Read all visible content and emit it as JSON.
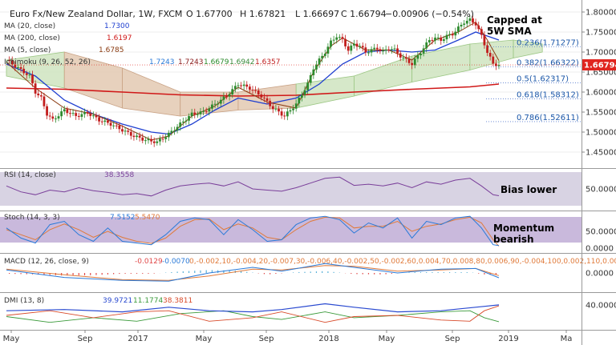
{
  "chart_data": {
    "type": "candlestick",
    "header": {
      "symbol": "Euro Fx/New Zealand Dollar, 1W, FXCM",
      "open": "O 1.67700",
      "high": "H 1.67821",
      "low": "L 1.66697",
      "close": "C 1.66794",
      "change": "−0.00906 (−0.54%)"
    },
    "legends": [
      {
        "label": "MA (20, close)",
        "value": "1.7300",
        "color": "#1f3fd0"
      },
      {
        "label": "MA (200, close)",
        "value": "1.6197",
        "color": "#d01818"
      },
      {
        "label": "MA (5, close)",
        "value": "1.6785",
        "color": "#8a3a10"
      },
      {
        "label": "Ichimoku (9, 26, 52, 26)",
        "values": [
          "1.7243",
          "1.7243",
          "1.6679",
          "1.6942",
          "1.6357"
        ],
        "colors": [
          "#2a7ad8",
          "#8a1a1a",
          "#2a8a2a",
          "#3a8a3a",
          "#c02020"
        ]
      }
    ],
    "price_axis": {
      "ticks": [
        "1.80000",
        "1.75000",
        "1.70000",
        "1.65000",
        "1.60000",
        "1.55000",
        "1.50000",
        "1.45000"
      ],
      "ylim": [
        1.43,
        1.81
      ]
    },
    "last_price": "1.66794",
    "time_labels": [
      "May",
      "Sep",
      "2017",
      "May",
      "Sep",
      "2018",
      "May",
      "Sep",
      "2019",
      "Ma"
    ],
    "fib_levels": [
      {
        "label": "0.236(1.71277)",
        "value": 1.71277
      },
      {
        "label": "0.382(1.66322)",
        "value": 1.66322
      },
      {
        "label": "0.5(1.62317)",
        "value": 1.62317
      },
      {
        "label": "0.618(1.58312)",
        "value": 1.58312
      },
      {
        "label": "0.786(1.52611)",
        "value": 1.52611
      }
    ],
    "annotations": [
      "Capped at",
      "5W SMA",
      "Bias lower",
      "Momentum",
      "bearish"
    ],
    "close_path": [
      [
        0,
        1.68
      ],
      [
        4,
        1.66
      ],
      [
        8,
        1.64
      ],
      [
        10,
        1.6
      ],
      [
        12,
        1.585
      ],
      [
        14,
        1.545
      ],
      [
        16,
        1.53
      ],
      [
        20,
        1.555
      ],
      [
        24,
        1.54
      ],
      [
        28,
        1.548
      ],
      [
        32,
        1.53
      ],
      [
        36,
        1.52
      ],
      [
        40,
        1.505
      ],
      [
        44,
        1.49
      ],
      [
        48,
        1.48
      ],
      [
        52,
        1.475
      ],
      [
        56,
        1.495
      ],
      [
        60,
        1.52
      ],
      [
        64,
        1.545
      ],
      [
        68,
        1.55
      ],
      [
        72,
        1.57
      ],
      [
        76,
        1.59
      ],
      [
        80,
        1.62
      ],
      [
        84,
        1.61
      ],
      [
        88,
        1.59
      ],
      [
        92,
        1.56
      ],
      [
        96,
        1.54
      ],
      [
        100,
        1.57
      ],
      [
        104,
        1.62
      ],
      [
        106,
        1.66
      ],
      [
        108,
        1.68
      ],
      [
        110,
        1.7
      ],
      [
        112,
        1.725
      ],
      [
        114,
        1.74
      ],
      [
        116,
        1.73
      ],
      [
        118,
        1.705
      ],
      [
        120,
        1.72
      ],
      [
        122,
        1.715
      ],
      [
        124,
        1.7
      ],
      [
        126,
        1.705
      ],
      [
        128,
        1.71
      ],
      [
        130,
        1.7
      ],
      [
        132,
        1.71
      ],
      [
        134,
        1.705
      ],
      [
        136,
        1.69
      ],
      [
        138,
        1.68
      ],
      [
        140,
        1.67
      ],
      [
        142,
        1.69
      ],
      [
        144,
        1.71
      ],
      [
        146,
        1.73
      ],
      [
        148,
        1.735
      ],
      [
        150,
        1.73
      ],
      [
        152,
        1.74
      ],
      [
        154,
        1.745
      ],
      [
        156,
        1.76
      ],
      [
        158,
        1.775
      ],
      [
        160,
        1.78
      ],
      [
        162,
        1.77
      ],
      [
        164,
        1.74
      ],
      [
        166,
        1.7
      ],
      [
        168,
        1.67
      ],
      [
        170,
        1.668
      ]
    ],
    "ma20_path": [
      [
        0,
        1.67
      ],
      [
        10,
        1.64
      ],
      [
        20,
        1.58
      ],
      [
        30,
        1.545
      ],
      [
        40,
        1.52
      ],
      [
        50,
        1.5
      ],
      [
        56,
        1.495
      ],
      [
        64,
        1.52
      ],
      [
        72,
        1.555
      ],
      [
        80,
        1.585
      ],
      [
        90,
        1.57
      ],
      [
        100,
        1.585
      ],
      [
        108,
        1.62
      ],
      [
        116,
        1.67
      ],
      [
        124,
        1.7
      ],
      [
        132,
        1.705
      ],
      [
        140,
        1.7
      ],
      [
        148,
        1.705
      ],
      [
        156,
        1.73
      ],
      [
        162,
        1.75
      ],
      [
        170,
        1.73
      ]
    ],
    "ma200_path": [
      [
        0,
        1.61
      ],
      [
        20,
        1.607
      ],
      [
        40,
        1.6
      ],
      [
        60,
        1.593
      ],
      [
        80,
        1.59
      ],
      [
        100,
        1.592
      ],
      [
        120,
        1.6
      ],
      [
        140,
        1.607
      ],
      [
        160,
        1.613
      ],
      [
        170,
        1.62
      ]
    ],
    "ma5_path": [
      [
        0,
        1.675
      ],
      [
        10,
        1.61
      ],
      [
        20,
        1.56
      ],
      [
        30,
        1.545
      ],
      [
        40,
        1.515
      ],
      [
        50,
        1.48
      ],
      [
        56,
        1.49
      ],
      [
        64,
        1.54
      ],
      [
        72,
        1.565
      ],
      [
        80,
        1.612
      ],
      [
        90,
        1.575
      ],
      [
        100,
        1.56
      ],
      [
        106,
        1.65
      ],
      [
        112,
        1.715
      ],
      [
        116,
        1.735
      ],
      [
        124,
        1.705
      ],
      [
        132,
        1.705
      ],
      [
        140,
        1.68
      ],
      [
        148,
        1.73
      ],
      [
        156,
        1.75
      ],
      [
        162,
        1.775
      ],
      [
        166,
        1.73
      ],
      [
        170,
        1.6785
      ]
    ],
    "cloud_top": [
      [
        0,
        1.68
      ],
      [
        20,
        1.7
      ],
      [
        40,
        1.66
      ],
      [
        60,
        1.6
      ],
      [
        80,
        1.6
      ],
      [
        100,
        1.62
      ],
      [
        120,
        1.64
      ],
      [
        140,
        1.69
      ],
      [
        160,
        1.72
      ],
      [
        175,
        1.73
      ],
      [
        185,
        1.72
      ]
    ],
    "cloud_bottom": [
      [
        0,
        1.64
      ],
      [
        20,
        1.61
      ],
      [
        40,
        1.56
      ],
      [
        60,
        1.54
      ],
      [
        80,
        1.555
      ],
      [
        100,
        1.56
      ],
      [
        120,
        1.59
      ],
      [
        140,
        1.625
      ],
      [
        160,
        1.655
      ],
      [
        175,
        1.685
      ],
      [
        185,
        1.7
      ]
    ],
    "rsi": {
      "label": "RSI (14, close)",
      "value": "38.3558",
      "ticks": [
        "50.0000"
      ],
      "ylim": [
        20,
        80
      ],
      "series": [
        [
          0,
          55
        ],
        [
          5,
          45
        ],
        [
          10,
          40
        ],
        [
          15,
          48
        ],
        [
          20,
          45
        ],
        [
          25,
          52
        ],
        [
          30,
          47
        ],
        [
          35,
          44
        ],
        [
          40,
          40
        ],
        [
          45,
          42
        ],
        [
          50,
          38
        ],
        [
          55,
          48
        ],
        [
          60,
          55
        ],
        [
          65,
          58
        ],
        [
          70,
          60
        ],
        [
          75,
          55
        ],
        [
          80,
          62
        ],
        [
          85,
          50
        ],
        [
          90,
          48
        ],
        [
          95,
          46
        ],
        [
          100,
          52
        ],
        [
          105,
          60
        ],
        [
          110,
          68
        ],
        [
          115,
          70
        ],
        [
          120,
          56
        ],
        [
          125,
          58
        ],
        [
          130,
          55
        ],
        [
          135,
          60
        ],
        [
          140,
          52
        ],
        [
          145,
          62
        ],
        [
          150,
          58
        ],
        [
          155,
          65
        ],
        [
          160,
          68
        ],
        [
          164,
          55
        ],
        [
          168,
          40
        ],
        [
          170,
          38.36
        ]
      ]
    },
    "stoch": {
      "label": "Stoch (14, 3, 3)",
      "k": "7.5152",
      "d": "5.5470",
      "ticks": [
        "50.0000",
        "0.0000"
      ],
      "ylim": [
        -5,
        105
      ],
      "k_series": [
        [
          0,
          60
        ],
        [
          5,
          30
        ],
        [
          10,
          15
        ],
        [
          15,
          70
        ],
        [
          20,
          80
        ],
        [
          25,
          40
        ],
        [
          30,
          20
        ],
        [
          35,
          60
        ],
        [
          40,
          20
        ],
        [
          45,
          15
        ],
        [
          50,
          10
        ],
        [
          55,
          40
        ],
        [
          60,
          80
        ],
        [
          65,
          90
        ],
        [
          70,
          85
        ],
        [
          75,
          40
        ],
        [
          80,
          85
        ],
        [
          85,
          55
        ],
        [
          90,
          20
        ],
        [
          95,
          25
        ],
        [
          100,
          70
        ],
        [
          105,
          90
        ],
        [
          110,
          95
        ],
        [
          115,
          85
        ],
        [
          120,
          45
        ],
        [
          125,
          75
        ],
        [
          130,
          60
        ],
        [
          135,
          90
        ],
        [
          140,
          30
        ],
        [
          145,
          80
        ],
        [
          150,
          70
        ],
        [
          155,
          90
        ],
        [
          160,
          95
        ],
        [
          164,
          60
        ],
        [
          168,
          10
        ],
        [
          170,
          7.5
        ]
      ],
      "d_series": [
        [
          0,
          55
        ],
        [
          5,
          40
        ],
        [
          10,
          25
        ],
        [
          15,
          55
        ],
        [
          20,
          72
        ],
        [
          25,
          55
        ],
        [
          30,
          32
        ],
        [
          35,
          50
        ],
        [
          40,
          32
        ],
        [
          45,
          20
        ],
        [
          50,
          14
        ],
        [
          55,
          30
        ],
        [
          60,
          65
        ],
        [
          65,
          85
        ],
        [
          70,
          87
        ],
        [
          75,
          55
        ],
        [
          80,
          72
        ],
        [
          85,
          60
        ],
        [
          90,
          32
        ],
        [
          95,
          25
        ],
        [
          100,
          55
        ],
        [
          105,
          80
        ],
        [
          110,
          92
        ],
        [
          115,
          90
        ],
        [
          120,
          60
        ],
        [
          125,
          65
        ],
        [
          130,
          65
        ],
        [
          135,
          80
        ],
        [
          140,
          50
        ],
        [
          145,
          65
        ],
        [
          150,
          72
        ],
        [
          155,
          85
        ],
        [
          160,
          92
        ],
        [
          164,
          75
        ],
        [
          168,
          25
        ],
        [
          170,
          5.5
        ]
      ]
    },
    "macd": {
      "label": "MACD (12, 26, close, 9)",
      "macd": "-0.0129",
      "signal": "-0.0070",
      "hist": [
        [
          0,
          -0.002
        ],
        [
          10,
          -0.004
        ],
        [
          20,
          -0.007
        ],
        [
          30,
          -0.006
        ],
        [
          40,
          -0.002
        ],
        [
          50,
          -0.002
        ],
        [
          60,
          0.004
        ],
        [
          70,
          0.008
        ],
        [
          80,
          0.006
        ],
        [
          90,
          -0.004
        ],
        [
          100,
          0.002
        ],
        [
          110,
          0.005
        ],
        [
          120,
          -0.003
        ],
        [
          130,
          -0.004
        ],
        [
          140,
          0.002
        ],
        [
          150,
          0.002
        ],
        [
          160,
          0.002
        ],
        [
          165,
          -0.004
        ],
        [
          170,
          -0.0059
        ]
      ],
      "ticks": [
        "0.0000"
      ],
      "ylim": [
        -0.045,
        0.045
      ],
      "macd_series": [
        [
          0,
          0.008
        ],
        [
          20,
          -0.012
        ],
        [
          40,
          -0.02
        ],
        [
          56,
          -0.022
        ],
        [
          70,
          0.0
        ],
        [
          85,
          0.015
        ],
        [
          95,
          0.005
        ],
        [
          110,
          0.025
        ],
        [
          120,
          0.015
        ],
        [
          135,
          0.0
        ],
        [
          150,
          0.01
        ],
        [
          162,
          0.012
        ],
        [
          170,
          -0.0129
        ]
      ],
      "signal_series": [
        [
          0,
          0.01
        ],
        [
          20,
          -0.005
        ],
        [
          40,
          -0.018
        ],
        [
          56,
          -0.02
        ],
        [
          70,
          -0.008
        ],
        [
          85,
          0.01
        ],
        [
          95,
          0.008
        ],
        [
          110,
          0.02
        ],
        [
          120,
          0.018
        ],
        [
          135,
          0.005
        ],
        [
          150,
          0.008
        ],
        [
          162,
          0.012
        ],
        [
          170,
          -0.007
        ]
      ]
    },
    "dmi": {
      "label": "DMI (13, 8)",
      "adx": "39.9721",
      "plus": "11.1774",
      "minus": "38.3811",
      "ticks": [
        "40.0000"
      ],
      "ylim": [
        0,
        55
      ],
      "adx_series": [
        [
          0,
          30
        ],
        [
          20,
          32
        ],
        [
          40,
          28
        ],
        [
          56,
          36
        ],
        [
          70,
          30
        ],
        [
          85,
          28
        ],
        [
          95,
          32
        ],
        [
          110,
          42
        ],
        [
          120,
          36
        ],
        [
          135,
          28
        ],
        [
          150,
          30
        ],
        [
          162,
          36
        ],
        [
          170,
          39.97
        ]
      ],
      "plus_series": [
        [
          0,
          20
        ],
        [
          15,
          10
        ],
        [
          30,
          18
        ],
        [
          45,
          12
        ],
        [
          60,
          25
        ],
        [
          75,
          30
        ],
        [
          85,
          20
        ],
        [
          95,
          15
        ],
        [
          110,
          28
        ],
        [
          120,
          18
        ],
        [
          135,
          22
        ],
        [
          150,
          28
        ],
        [
          160,
          30
        ],
        [
          165,
          18
        ],
        [
          170,
          11.18
        ]
      ],
      "minus_series": [
        [
          0,
          22
        ],
        [
          15,
          30
        ],
        [
          30,
          18
        ],
        [
          45,
          28
        ],
        [
          56,
          30
        ],
        [
          70,
          12
        ],
        [
          85,
          18
        ],
        [
          95,
          28
        ],
        [
          110,
          10
        ],
        [
          120,
          20
        ],
        [
          135,
          22
        ],
        [
          150,
          14
        ],
        [
          160,
          12
        ],
        [
          165,
          30
        ],
        [
          170,
          38.38
        ]
      ]
    }
  }
}
